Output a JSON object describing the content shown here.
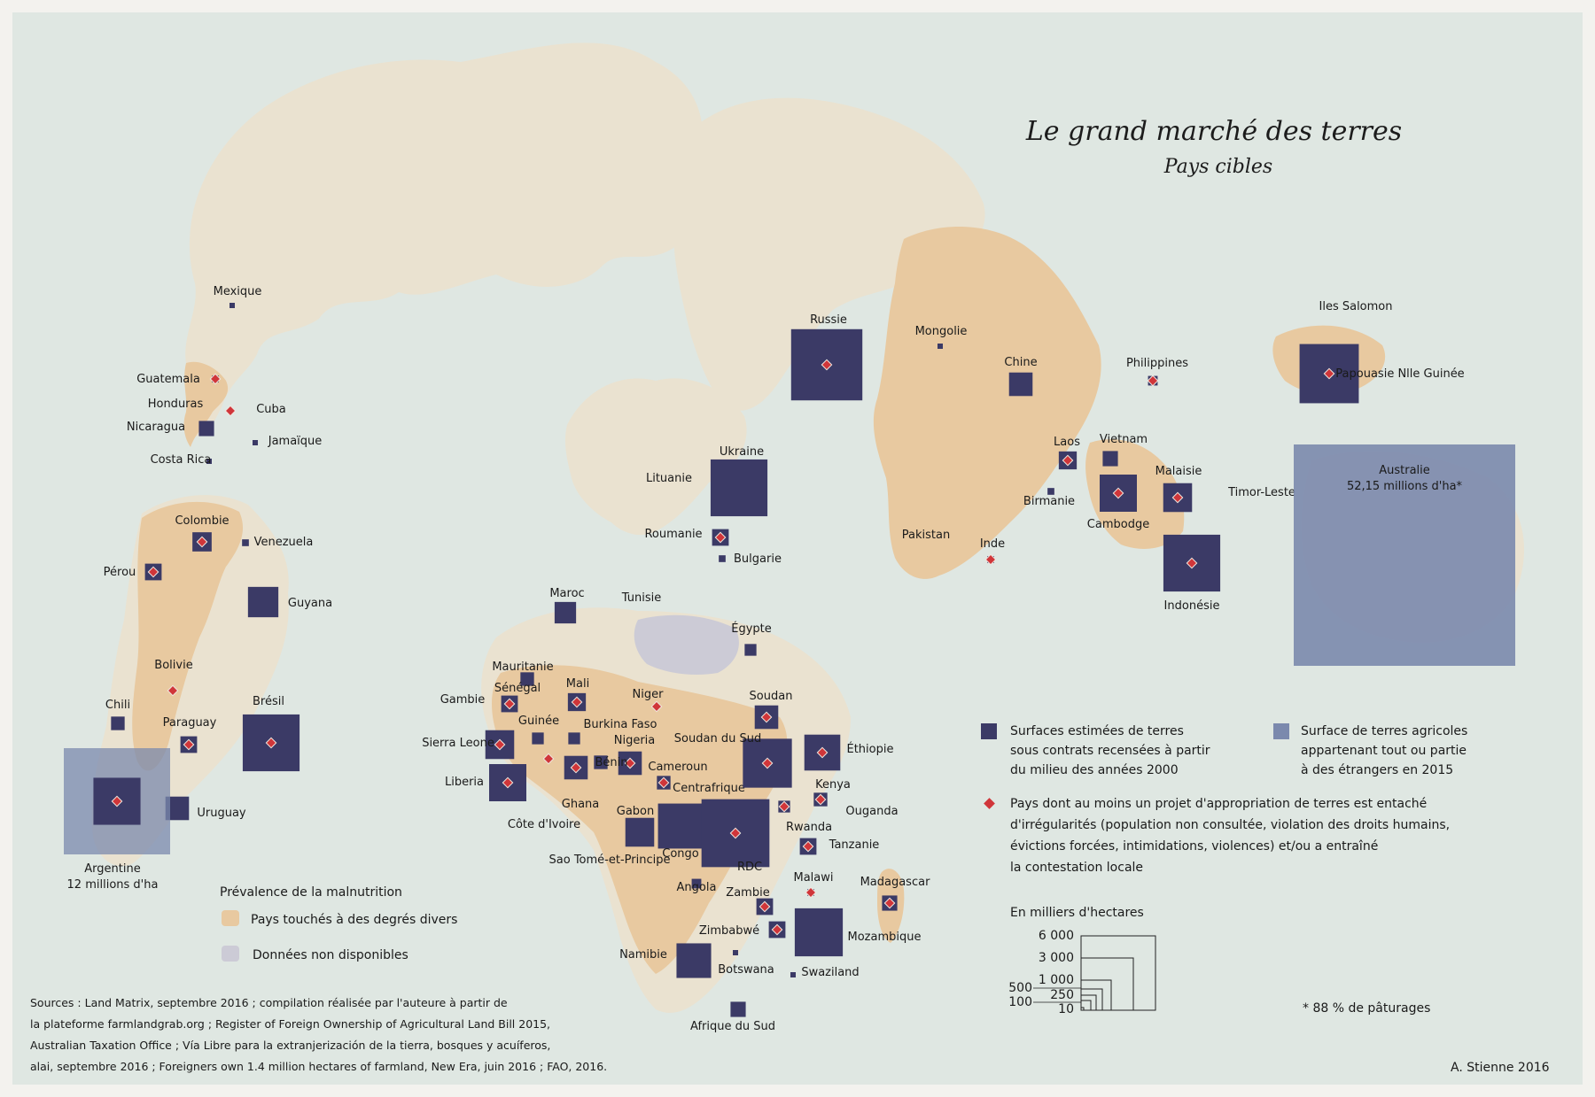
{
  "title": "Le grand marché des terres",
  "subtitle": "Pays cibles",
  "colors": {
    "ocean": "#dfe7e2",
    "land": "#eae2d0",
    "malnutrition": "#e8c9a0",
    "no_data": "#cccbd6",
    "contract_square": "#3b3a66",
    "foreign_square": "#7b89ad",
    "irregularity_diamond": "#d0363a"
  },
  "countries": [
    {
      "label": "Mexique",
      "ha_thousands": 20,
      "irregular": false
    },
    {
      "label": "Guatemala",
      "ha_thousands": 50,
      "irregular": true
    },
    {
      "label": "Honduras",
      "ha_thousands": 0,
      "irregular": true
    },
    {
      "label": "Cuba",
      "ha_thousands": 0,
      "irregular": false
    },
    {
      "label": "Nicaragua",
      "ha_thousands": 250,
      "irregular": false
    },
    {
      "label": "Jamaïque",
      "ha_thousands": 5,
      "irregular": false
    },
    {
      "label": "Costa Rica",
      "ha_thousands": 5,
      "irregular": false
    },
    {
      "label": "Colombie",
      "ha_thousands": 400,
      "irregular": true
    },
    {
      "label": "Venezuela",
      "ha_thousands": 50,
      "irregular": false
    },
    {
      "label": "Pérou",
      "ha_thousands": 300,
      "irregular": true
    },
    {
      "label": "Guyana",
      "ha_thousands": 1000,
      "irregular": false
    },
    {
      "label": "Bolivie",
      "ha_thousands": 30,
      "irregular": true
    },
    {
      "label": "Chili",
      "ha_thousands": 200,
      "irregular": false
    },
    {
      "label": "Paraguay",
      "ha_thousands": 300,
      "irregular": true
    },
    {
      "label": "Brésil",
      "ha_thousands": 3500,
      "irregular": true
    },
    {
      "label": "Uruguay",
      "ha_thousands": 600,
      "irregular": false
    },
    {
      "label": "Argentine",
      "ha_thousands": 2400,
      "irregular": true,
      "foreign_note": "12 millions d'ha"
    },
    {
      "label": "Russie",
      "ha_thousands": 5500,
      "irregular": true
    },
    {
      "label": "Mongolie",
      "ha_thousands": 20,
      "irregular": false
    },
    {
      "label": "Chine",
      "ha_thousands": 600,
      "irregular": false
    },
    {
      "label": "Philippines",
      "ha_thousands": 100,
      "irregular": true
    },
    {
      "label": "Papouasie Nlle Guinée",
      "ha_thousands": 3800,
      "irregular": true
    },
    {
      "label": "Iles Salomon",
      "ha_thousands": 0,
      "irregular": false
    },
    {
      "label": "Ukraine",
      "ha_thousands": 3500,
      "irregular": false
    },
    {
      "label": "Lituanie",
      "ha_thousands": 0,
      "irregular": false
    },
    {
      "label": "Roumanie",
      "ha_thousands": 300,
      "irregular": true
    },
    {
      "label": "Bulgarie",
      "ha_thousands": 50,
      "irregular": false
    },
    {
      "label": "Laos",
      "ha_thousands": 350,
      "irregular": true
    },
    {
      "label": "Vietnam",
      "ha_thousands": 250,
      "irregular": false
    },
    {
      "label": "Malaisie",
      "ha_thousands": 900,
      "irregular": true
    },
    {
      "label": "Birmanie",
      "ha_thousands": 50,
      "irregular": false
    },
    {
      "label": "Cambodge",
      "ha_thousands": 1500,
      "irregular": true
    },
    {
      "label": "Timor-Leste",
      "ha_thousands": 0,
      "irregular": false
    },
    {
      "label": "Australie",
      "ha_thousands": 52150,
      "irregular": false,
      "foreign_note": "52,15 millions d'ha*"
    },
    {
      "label": "Pakistan",
      "ha_thousands": 0,
      "irregular": false
    },
    {
      "label": "Inde",
      "ha_thousands": 50,
      "irregular": true
    },
    {
      "label": "Indonésie",
      "ha_thousands": 3500,
      "irregular": true
    },
    {
      "label": "Maroc",
      "ha_thousands": 500,
      "irregular": false
    },
    {
      "label": "Tunisie",
      "ha_thousands": 0,
      "irregular": false
    },
    {
      "label": "Égypte",
      "ha_thousands": 150,
      "irregular": false
    },
    {
      "label": "Mauritanie",
      "ha_thousands": 200,
      "irregular": false
    },
    {
      "label": "Sénégal",
      "ha_thousands": 300,
      "irregular": true
    },
    {
      "label": "Gambie",
      "ha_thousands": 0,
      "irregular": false
    },
    {
      "label": "Mali",
      "ha_thousands": 350,
      "irregular": true
    },
    {
      "label": "Niger",
      "ha_thousands": 0,
      "irregular": true
    },
    {
      "label": "Guinée",
      "ha_thousands": 150,
      "irregular": false
    },
    {
      "label": "Burkina Faso",
      "ha_thousands": 150,
      "irregular": false
    },
    {
      "label": "Nigeria",
      "ha_thousands": 600,
      "irregular": true
    },
    {
      "label": "Sierra Leone",
      "ha_thousands": 900,
      "irregular": true
    },
    {
      "label": "Liberia",
      "ha_thousands": 1500,
      "irregular": true
    },
    {
      "label": "Côte d'Ivoire",
      "ha_thousands": 0,
      "irregular": true
    },
    {
      "label": "Ghana",
      "ha_thousands": 600,
      "irregular": true
    },
    {
      "label": "Bénin",
      "ha_thousands": 200,
      "irregular": false
    },
    {
      "label": "Cameroun",
      "ha_thousands": 200,
      "irregular": true
    },
    {
      "label": "Centrafrique",
      "ha_thousands": 0,
      "irregular": false
    },
    {
      "label": "Soudan",
      "ha_thousands": 600,
      "irregular": true
    },
    {
      "label": "Soudan du Sud",
      "ha_thousands": 2600,
      "irregular": true
    },
    {
      "label": "Éthiopie",
      "ha_thousands": 1400,
      "irregular": true
    },
    {
      "label": "Kenya",
      "ha_thousands": 200,
      "irregular": true
    },
    {
      "label": "Ouganda",
      "ha_thousands": 150,
      "irregular": true
    },
    {
      "label": "Rwanda",
      "ha_thousands": 0,
      "irregular": false
    },
    {
      "label": "Tanzanie",
      "ha_thousands": 300,
      "irregular": true
    },
    {
      "label": "Gabon",
      "ha_thousands": 900,
      "irregular": false
    },
    {
      "label": "Sao Tomé-et-Principe",
      "ha_thousands": 0,
      "irregular": false
    },
    {
      "label": "Congo",
      "ha_thousands": 2200,
      "irregular": false
    },
    {
      "label": "RDC",
      "ha_thousands": 5000,
      "irregular": true
    },
    {
      "label": "Angola",
      "ha_thousands": 100,
      "irregular": false
    },
    {
      "label": "Zambie",
      "ha_thousands": 300,
      "irregular": true
    },
    {
      "label": "Malawi",
      "ha_thousands": 50,
      "irregular": true
    },
    {
      "label": "Madagascar",
      "ha_thousands": 250,
      "irregular": true
    },
    {
      "label": "Zimbabwé",
      "ha_thousands": 300,
      "irregular": true
    },
    {
      "label": "Mozambique",
      "ha_thousands": 2500,
      "irregular": false
    },
    {
      "label": "Namibie",
      "ha_thousands": 1300,
      "irregular": false
    },
    {
      "label": "Botswana",
      "ha_thousands": 20,
      "irregular": false
    },
    {
      "label": "Swaziland",
      "ha_thousands": 10,
      "irregular": false
    },
    {
      "label": "Afrique du Sud",
      "ha_thousands": 250,
      "irregular": false
    }
  ],
  "legend": {
    "malnutrition_title": "Prévalence de la malnutrition",
    "malnutrition_affected": "Pays touchés à des degrés divers",
    "no_data": "Données non disponibles",
    "contract_lines": [
      "Surfaces estimées de terres",
      "sous contrats recensées à partir",
      "du milieu des années 2000"
    ],
    "foreign_lines": [
      "Surface de terres agricoles",
      "appartenant tout ou partie",
      "à des étrangers en 2015"
    ],
    "irregular_lines": [
      "Pays dont au moins un projet d'appropriation de terres est entaché",
      "d'irrégularités (population non consultée, violation des droits humains,",
      "évictions forcées, intimidations, violences) et/ou a entraîné",
      "la contestation locale"
    ],
    "scale_title": "En milliers d'hectares",
    "scale_values": [
      "6 000",
      "3 000",
      "1 000",
      "500",
      "250",
      "100",
      "10"
    ],
    "pasture_note": "* 88 % de pâturages"
  },
  "sources": [
    "Sources : Land Matrix, septembre 2016 ; compilation réalisée par l'auteure à partir de",
    "la plateforme farmlandgrab.org ; Register of Foreign Ownership of Agricultural Land Bill 2015,",
    "Australian Taxation Office ; Vía Libre para la extranjerización de la tierra, bosques y acuíferos,",
    "alai, septembre 2016 ; Foreigners own 1.4 million hectares of farmland, New Era, juin 2016 ; FAO, 2016."
  ],
  "signature": "A. Stienne 2016"
}
